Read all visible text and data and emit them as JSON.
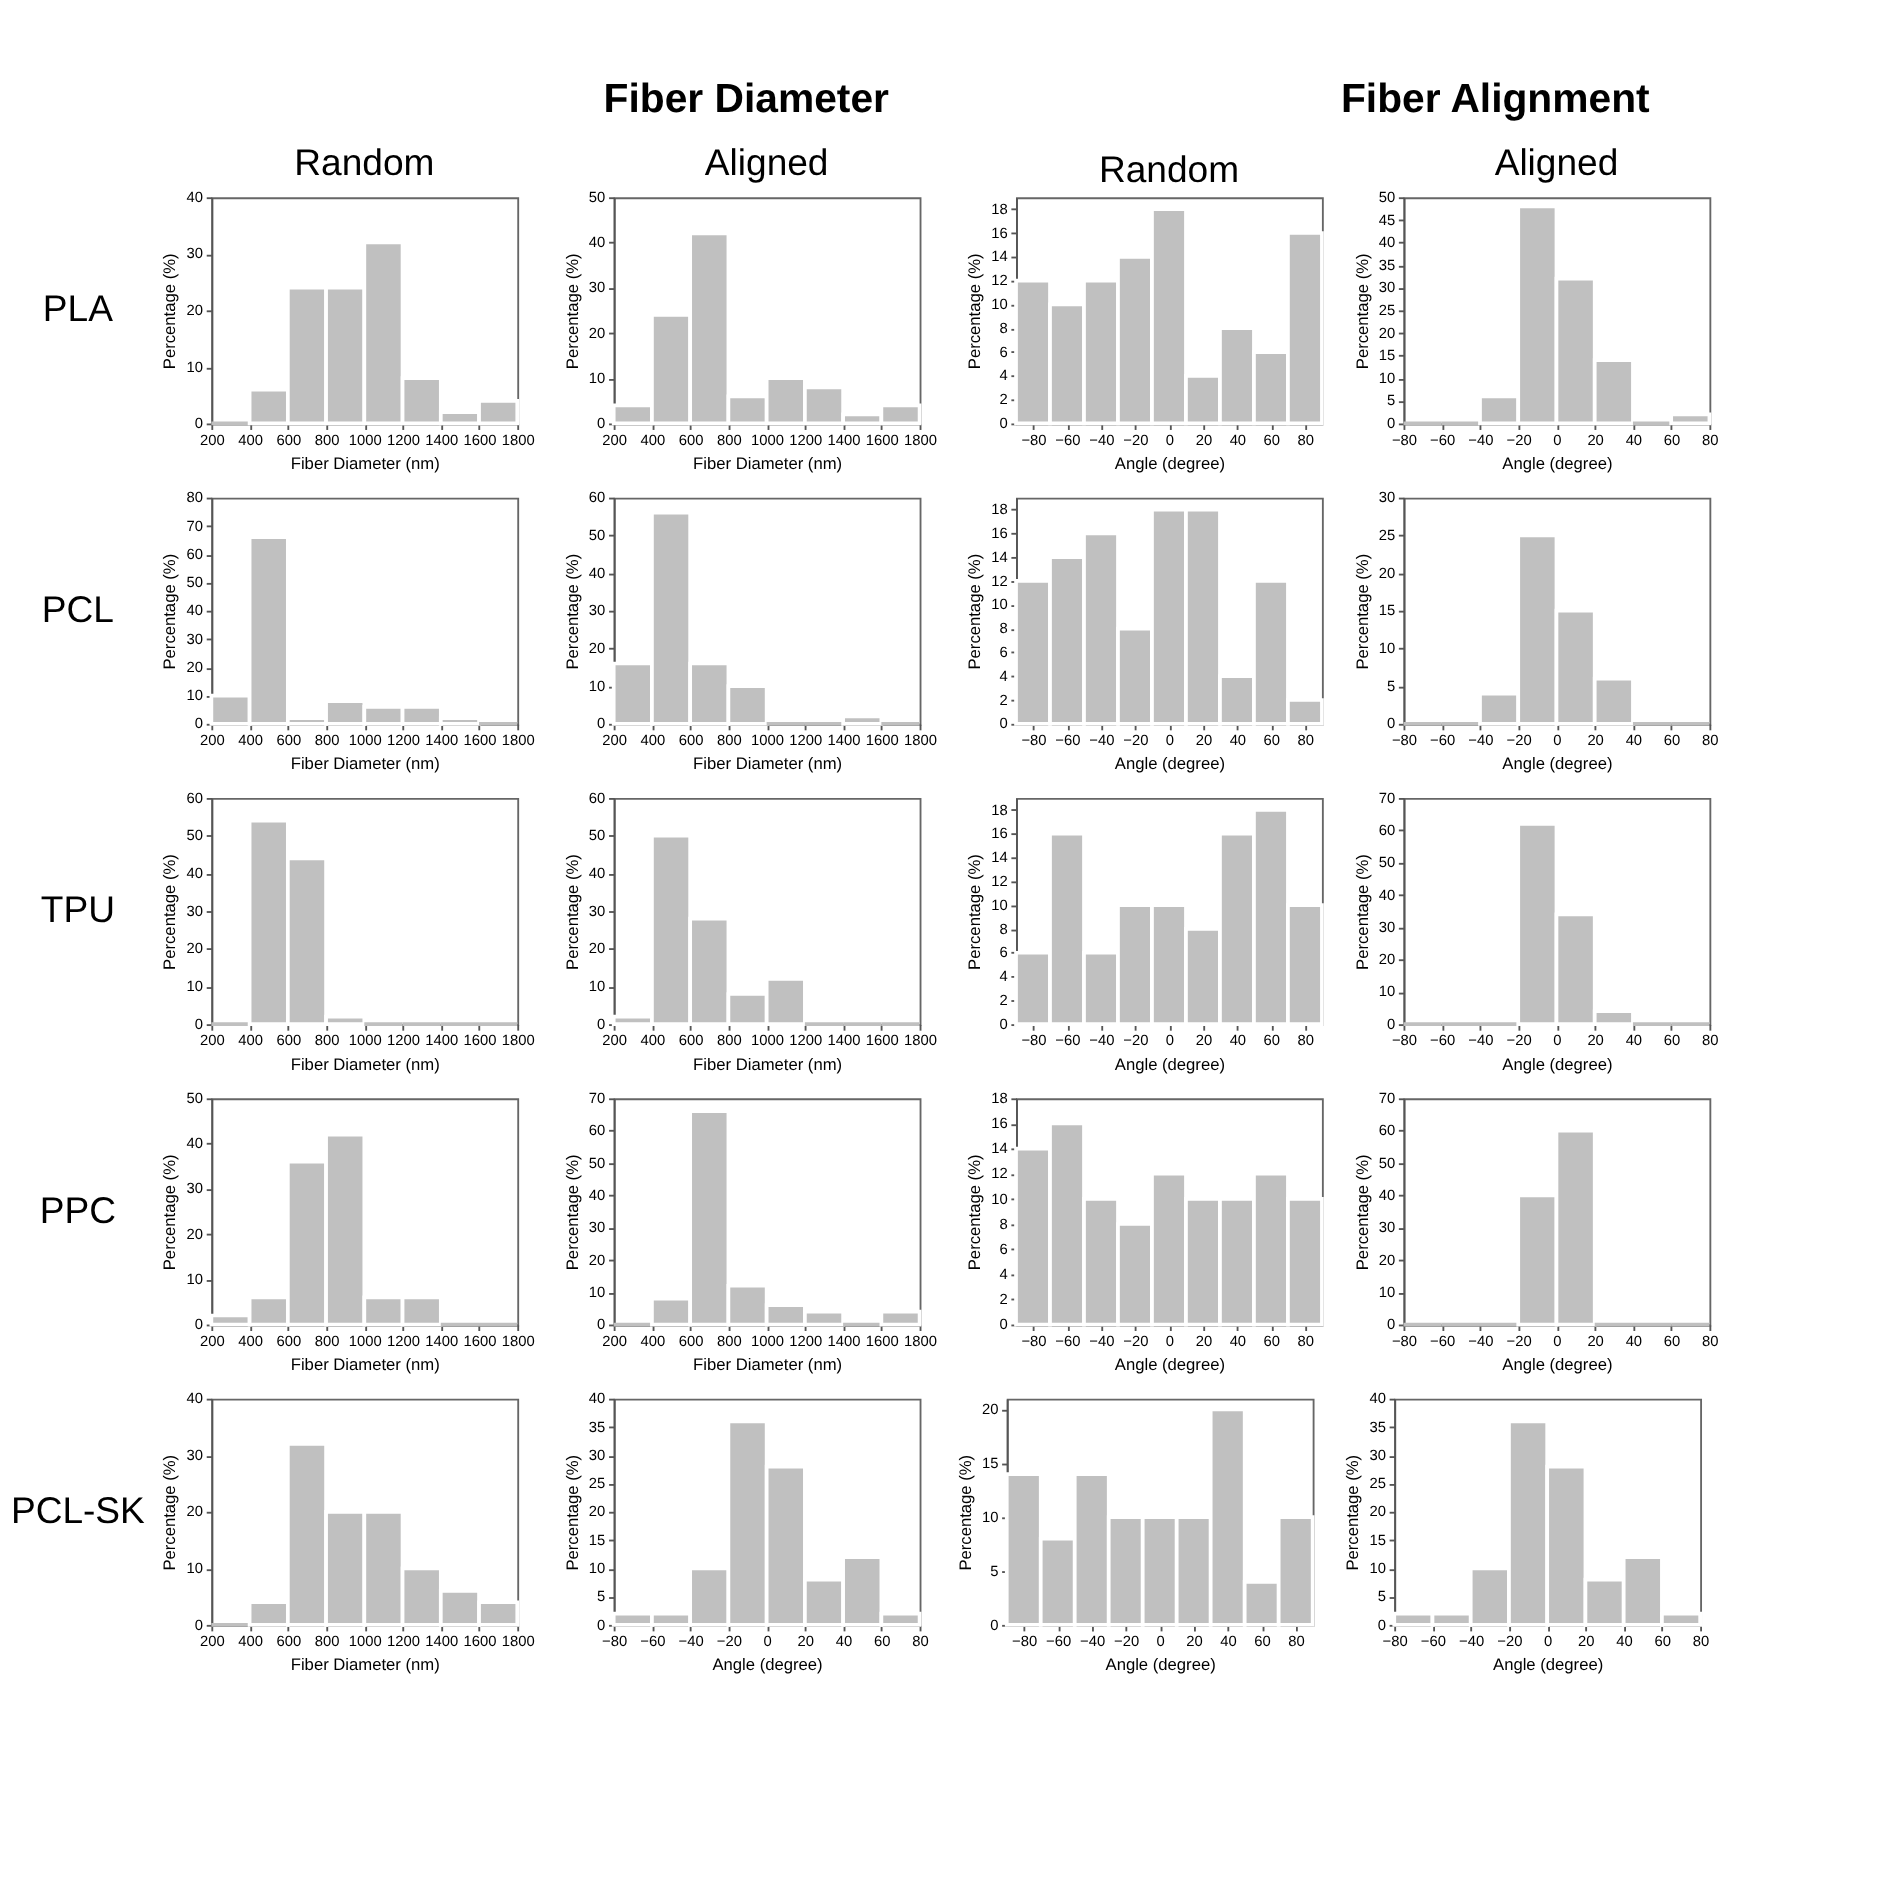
{
  "chart_data": [
    {
      "type": "other",
      "title": "Fiber Diameter"
    },
    {
      "type": "other",
      "title": "Fiber Alignment"
    },
    {
      "type": "histogram",
      "title": "Random",
      "annotations": [
        "PLA"
      ],
      "bins": [
        200,
        400,
        600,
        800,
        1000,
        1200,
        1400,
        1600,
        1800
      ],
      "values": [
        0,
        6,
        24,
        24,
        32,
        8,
        2,
        4
      ],
      "color": "#c0c0c0",
      "xlim": [
        200,
        1800
      ],
      "xticks": [
        200,
        400,
        600,
        800,
        1000,
        1200,
        1400,
        1600,
        1800
      ],
      "ylim": [
        0,
        40
      ],
      "yticks": [
        0,
        10,
        20,
        30,
        40
      ],
      "xlabel": "Fiber Diameter (nm)",
      "ylabel": "Percentage (%)"
    },
    {
      "type": "histogram",
      "title": "Aligned",
      "bins": [
        200,
        400,
        600,
        800,
        1000,
        1200,
        1400,
        1600,
        1800
      ],
      "values": [
        4,
        24,
        42,
        6,
        10,
        8,
        2,
        4
      ],
      "color": "#c0c0c0",
      "xlim": [
        200,
        1800
      ],
      "xticks": [
        200,
        400,
        600,
        800,
        1000,
        1200,
        1400,
        1600,
        1800
      ],
      "ylim": [
        0,
        50
      ],
      "yticks": [
        0,
        10,
        20,
        30,
        40,
        50
      ],
      "xlabel": "Fiber Diameter (nm)",
      "ylabel": "Percentage (%)"
    },
    {
      "type": "histogram",
      "title": "Random",
      "bins": [
        -90,
        -70,
        -50,
        -30,
        -10,
        10,
        30,
        50,
        70,
        90
      ],
      "values": [
        12,
        10,
        12,
        14,
        18,
        4,
        8,
        6,
        16
      ],
      "color": "#c0c0c0",
      "xlim": [
        -90,
        90
      ],
      "xticks": [
        -80,
        -60,
        -40,
        -20,
        0,
        20,
        40,
        60,
        80
      ],
      "ylim": [
        0,
        19
      ],
      "yticks": [
        0,
        2,
        4,
        6,
        8,
        10,
        12,
        14,
        16,
        18
      ],
      "xlabel": "Angle (degree)",
      "ylabel": "Percentage (%)"
    },
    {
      "type": "histogram",
      "title": "Aligned",
      "bins": [
        -80,
        -60,
        -40,
        -20,
        0,
        20,
        40,
        60,
        80
      ],
      "values": [
        0,
        0,
        6,
        48,
        32,
        14,
        0,
        2
      ],
      "color": "#c0c0c0",
      "xlim": [
        -80,
        80
      ],
      "xticks": [
        -80,
        -60,
        -40,
        -20,
        0,
        20,
        40,
        60,
        80
      ],
      "ylim": [
        0,
        50
      ],
      "yticks": [
        0,
        5,
        10,
        15,
        20,
        25,
        30,
        35,
        40,
        45,
        50
      ],
      "xlabel": "Angle (degree)",
      "ylabel": "Percentage (%)"
    },
    {
      "type": "histogram",
      "annotations": [
        "PCL"
      ],
      "bins": [
        200,
        400,
        600,
        800,
        1000,
        1200,
        1400,
        1600,
        1800
      ],
      "values": [
        10,
        66,
        2,
        8,
        6,
        6,
        2,
        0
      ],
      "color": "#c0c0c0",
      "xlim": [
        200,
        1800
      ],
      "xticks": [
        200,
        400,
        600,
        800,
        1000,
        1200,
        1400,
        1600,
        1800
      ],
      "ylim": [
        0,
        80
      ],
      "yticks": [
        0,
        10,
        20,
        30,
        40,
        50,
        60,
        70,
        80
      ],
      "xlabel": "Fiber Diameter (nm)",
      "ylabel": "Percentage (%)"
    },
    {
      "type": "histogram",
      "bins": [
        200,
        400,
        600,
        800,
        1000,
        1200,
        1400,
        1600,
        1800
      ],
      "values": [
        16,
        56,
        16,
        10,
        0,
        0,
        2,
        0
      ],
      "color": "#c0c0c0",
      "xlim": [
        200,
        1800
      ],
      "xticks": [
        200,
        400,
        600,
        800,
        1000,
        1200,
        1400,
        1600,
        1800
      ],
      "ylim": [
        0,
        60
      ],
      "yticks": [
        0,
        10,
        20,
        30,
        40,
        50,
        60
      ],
      "xlabel": "Fiber Diameter (nm)",
      "ylabel": "Percentage (%)"
    },
    {
      "type": "histogram",
      "bins": [
        -90,
        -70,
        -50,
        -30,
        -10,
        10,
        30,
        50,
        70,
        90
      ],
      "values": [
        12,
        14,
        16,
        8,
        18,
        18,
        4,
        12,
        2
      ],
      "color": "#c0c0c0",
      "xlim": [
        -90,
        90
      ],
      "xticks": [
        -80,
        -60,
        -40,
        -20,
        0,
        20,
        40,
        60,
        80
      ],
      "ylim": [
        0,
        19
      ],
      "yticks": [
        0,
        2,
        4,
        6,
        8,
        10,
        12,
        14,
        16,
        18
      ],
      "xlabel": "Angle (degree)",
      "ylabel": "Percentage (%)"
    },
    {
      "type": "histogram",
      "bins": [
        -80,
        -60,
        -40,
        -20,
        0,
        20,
        40,
        60,
        80
      ],
      "values": [
        0,
        0,
        4,
        25,
        15,
        6,
        0,
        0
      ],
      "color": "#c0c0c0",
      "xlim": [
        -80,
        80
      ],
      "xticks": [
        -80,
        -60,
        -40,
        -20,
        0,
        20,
        40,
        60,
        80
      ],
      "ylim": [
        0,
        30
      ],
      "yticks": [
        0,
        5,
        10,
        15,
        20,
        25,
        30
      ],
      "xlabel": "Angle (degree)",
      "ylabel": "Percentage (%)"
    },
    {
      "type": "histogram",
      "annotations": [
        "TPU"
      ],
      "bins": [
        200,
        400,
        600,
        800,
        1000,
        1200,
        1400,
        1600,
        1800
      ],
      "values": [
        0,
        54,
        44,
        2,
        0,
        0,
        0,
        0
      ],
      "color": "#c0c0c0",
      "xlim": [
        200,
        1800
      ],
      "xticks": [
        200,
        400,
        600,
        800,
        1000,
        1200,
        1400,
        1600,
        1800
      ],
      "ylim": [
        0,
        60
      ],
      "yticks": [
        0,
        10,
        20,
        30,
        40,
        50,
        60
      ],
      "xlabel": "Fiber Diameter (nm)",
      "ylabel": "Percentage (%)"
    },
    {
      "type": "histogram",
      "bins": [
        200,
        400,
        600,
        800,
        1000,
        1200,
        1400,
        1600,
        1800
      ],
      "values": [
        2,
        50,
        28,
        8,
        12,
        0,
        0,
        0
      ],
      "color": "#c0c0c0",
      "xlim": [
        200,
        1800
      ],
      "xticks": [
        200,
        400,
        600,
        800,
        1000,
        1200,
        1400,
        1600,
        1800
      ],
      "ylim": [
        0,
        60
      ],
      "yticks": [
        0,
        10,
        20,
        30,
        40,
        50,
        60
      ],
      "xlabel": "Fiber Diameter (nm)",
      "ylabel": "Percentage (%)"
    },
    {
      "type": "histogram",
      "bins": [
        -90,
        -70,
        -50,
        -30,
        -10,
        10,
        30,
        50,
        70,
        90
      ],
      "values": [
        6,
        16,
        6,
        10,
        10,
        8,
        16,
        18,
        10
      ],
      "color": "#c0c0c0",
      "xlim": [
        -90,
        90
      ],
      "xticks": [
        -80,
        -60,
        -40,
        -20,
        0,
        20,
        40,
        60,
        80
      ],
      "ylim": [
        0,
        19
      ],
      "yticks": [
        0,
        2,
        4,
        6,
        8,
        10,
        12,
        14,
        16,
        18
      ],
      "xlabel": "Angle (degree)",
      "ylabel": "Percentage (%)"
    },
    {
      "type": "histogram",
      "bins": [
        -80,
        -60,
        -40,
        -20,
        0,
        20,
        40,
        60,
        80
      ],
      "values": [
        0,
        0,
        0,
        62,
        34,
        4,
        0,
        0
      ],
      "color": "#c0c0c0",
      "xlim": [
        -80,
        80
      ],
      "xticks": [
        -80,
        -60,
        -40,
        -20,
        0,
        20,
        40,
        60,
        80
      ],
      "ylim": [
        0,
        70
      ],
      "yticks": [
        0,
        10,
        20,
        30,
        40,
        50,
        60,
        70
      ],
      "xlabel": "Angle (degree)",
      "ylabel": "Percentage (%)"
    },
    {
      "type": "histogram",
      "annotations": [
        "PPC"
      ],
      "bins": [
        200,
        400,
        600,
        800,
        1000,
        1200,
        1400,
        1600,
        1800
      ],
      "values": [
        2,
        6,
        36,
        42,
        6,
        6,
        0,
        0
      ],
      "color": "#c0c0c0",
      "xlim": [
        200,
        1800
      ],
      "xticks": [
        200,
        400,
        600,
        800,
        1000,
        1200,
        1400,
        1600,
        1800
      ],
      "ylim": [
        0,
        50
      ],
      "yticks": [
        0,
        10,
        20,
        30,
        40,
        50
      ],
      "xlabel": "Fiber Diameter (nm)",
      "ylabel": "Percentage (%)"
    },
    {
      "type": "histogram",
      "bins": [
        200,
        400,
        600,
        800,
        1000,
        1200,
        1400,
        1600,
        1800
      ],
      "values": [
        0,
        8,
        66,
        12,
        6,
        4,
        0,
        4
      ],
      "color": "#c0c0c0",
      "xlim": [
        200,
        1800
      ],
      "xticks": [
        200,
        400,
        600,
        800,
        1000,
        1200,
        1400,
        1600,
        1800
      ],
      "ylim": [
        0,
        70
      ],
      "yticks": [
        0,
        10,
        20,
        30,
        40,
        50,
        60,
        70
      ],
      "xlabel": "Fiber Diameter (nm)",
      "ylabel": "Percentage (%)"
    },
    {
      "type": "histogram",
      "bins": [
        -90,
        -70,
        -50,
        -30,
        -10,
        10,
        30,
        50,
        70,
        90
      ],
      "values": [
        14,
        16,
        10,
        8,
        12,
        10,
        10,
        12,
        10
      ],
      "color": "#c0c0c0",
      "xlim": [
        -90,
        90
      ],
      "xticks": [
        -80,
        -60,
        -40,
        -20,
        0,
        20,
        40,
        60,
        80
      ],
      "ylim": [
        0,
        18
      ],
      "yticks": [
        0,
        2,
        4,
        6,
        8,
        10,
        12,
        14,
        16,
        18
      ],
      "xlabel": "Angle (degree)",
      "ylabel": "Percentage (%)"
    },
    {
      "type": "histogram",
      "bins": [
        -80,
        -60,
        -40,
        -20,
        0,
        20,
        40,
        60,
        80
      ],
      "values": [
        0,
        0,
        0,
        40,
        60,
        0,
        0,
        0
      ],
      "color": "#c0c0c0",
      "xlim": [
        -80,
        80
      ],
      "xticks": [
        -80,
        -60,
        -40,
        -20,
        0,
        20,
        40,
        60,
        80
      ],
      "ylim": [
        0,
        70
      ],
      "yticks": [
        0,
        10,
        20,
        30,
        40,
        50,
        60,
        70
      ],
      "xlabel": "Angle (degree)",
      "ylabel": "Percentage (%)"
    },
    {
      "type": "histogram",
      "annotations": [
        "PCL-SK"
      ],
      "bins": [
        200,
        400,
        600,
        800,
        1000,
        1200,
        1400,
        1600,
        1800
      ],
      "values": [
        0,
        4,
        32,
        20,
        20,
        10,
        6,
        4
      ],
      "color": "#c0c0c0",
      "xlim": [
        200,
        1800
      ],
      "xticks": [
        200,
        400,
        600,
        800,
        1000,
        1200,
        1400,
        1600,
        1800
      ],
      "ylim": [
        0,
        40
      ],
      "yticks": [
        0,
        10,
        20,
        30,
        40
      ],
      "xlabel": "Fiber Diameter (nm)",
      "ylabel": "Percentage (%)"
    },
    {
      "type": "histogram",
      "bins": [
        -80,
        -60,
        -40,
        -20,
        0,
        20,
        40,
        60,
        80
      ],
      "values": [
        2,
        2,
        10,
        36,
        28,
        8,
        12,
        2
      ],
      "color": "#c0c0c0",
      "xlim": [
        -80,
        80
      ],
      "xticks": [
        -80,
        -60,
        -40,
        -20,
        0,
        20,
        40,
        60,
        80
      ],
      "ylim": [
        0,
        40
      ],
      "yticks": [
        0,
        5,
        10,
        15,
        20,
        25,
        30,
        35,
        40
      ],
      "xlabel": "Angle (degree)",
      "ylabel": "Percentage (%)"
    },
    {
      "type": "histogram",
      "bins": [
        -90,
        -70,
        -50,
        -30,
        -10,
        10,
        30,
        50,
        70,
        90
      ],
      "values": [
        14,
        8,
        14,
        10,
        10,
        10,
        20,
        4,
        10
      ],
      "color": "#c0c0c0",
      "xlim": [
        -90,
        90
      ],
      "xticks": [
        -80,
        -60,
        -40,
        -20,
        0,
        20,
        40,
        60,
        80
      ],
      "ylim": [
        0,
        21
      ],
      "yticks": [
        0,
        5,
        10,
        15,
        20
      ],
      "xlabel": "Angle (degree)",
      "ylabel": "Percentage (%)"
    },
    {
      "type": "histogram",
      "bins": [
        -80,
        -60,
        -40,
        -20,
        0,
        20,
        40,
        60,
        80
      ],
      "values": [
        2,
        2,
        10,
        36,
        28,
        8,
        12,
        2
      ],
      "color": "#c0c0c0",
      "xlim": [
        -80,
        80
      ],
      "xticks": [
        -80,
        -60,
        -40,
        -20,
        0,
        20,
        40,
        60,
        80
      ],
      "ylim": [
        0,
        40
      ],
      "yticks": [
        0,
        5,
        10,
        15,
        20,
        25,
        30,
        35,
        40
      ],
      "xlabel": "Angle (degree)",
      "ylabel": "Percentage (%)"
    }
  ]
}
